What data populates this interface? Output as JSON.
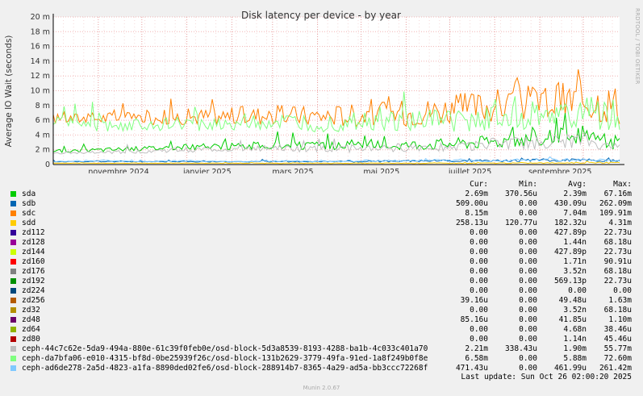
{
  "footer": "Munin 2.0.67",
  "side_label": "RRDTOOL / TOBI OETIKER",
  "last_update": "Last update: Sun Oct 26 02:00:20 2025",
  "columns": [
    "Cur:",
    "Min:",
    "Avg:",
    "Max:"
  ],
  "legend": [
    {
      "label": "sda",
      "color": "#00cc00",
      "cur": "2.69m",
      "min": "370.56u",
      "avg": "2.39m",
      "max": "67.16m"
    },
    {
      "label": "sdb",
      "color": "#0066b3",
      "cur": "509.00u",
      "min": "0.00",
      "avg": "430.09u",
      "max": "262.09m"
    },
    {
      "label": "sdc",
      "color": "#ff8000",
      "cur": "8.15m",
      "min": "0.00",
      "avg": "7.04m",
      "max": "109.91m"
    },
    {
      "label": "sdd",
      "color": "#ffcc00",
      "cur": "258.13u",
      "min": "120.77u",
      "avg": "182.32u",
      "max": "4.31m"
    },
    {
      "label": "zd112",
      "color": "#330099",
      "cur": "0.00",
      "min": "0.00",
      "avg": "427.89p",
      "max": "22.73u"
    },
    {
      "label": "zd128",
      "color": "#990099",
      "cur": "0.00",
      "min": "0.00",
      "avg": "1.44n",
      "max": "68.18u"
    },
    {
      "label": "zd144",
      "color": "#ccff00",
      "cur": "0.00",
      "min": "0.00",
      "avg": "427.89p",
      "max": "22.73u"
    },
    {
      "label": "zd160",
      "color": "#ff0000",
      "cur": "0.00",
      "min": "0.00",
      "avg": "1.71n",
      "max": "90.91u"
    },
    {
      "label": "zd176",
      "color": "#808080",
      "cur": "0.00",
      "min": "0.00",
      "avg": "3.52n",
      "max": "68.18u"
    },
    {
      "label": "zd192",
      "color": "#008f00",
      "cur": "0.00",
      "min": "0.00",
      "avg": "569.13p",
      "max": "22.73u"
    },
    {
      "label": "zd224",
      "color": "#00487d",
      "cur": "0.00",
      "min": "0.00",
      "avg": "0.00",
      "max": "0.00"
    },
    {
      "label": "zd256",
      "color": "#b35a00",
      "cur": "39.16u",
      "min": "0.00",
      "avg": "49.48u",
      "max": "1.63m"
    },
    {
      "label": "zd32",
      "color": "#b38f00",
      "cur": "0.00",
      "min": "0.00",
      "avg": "3.52n",
      "max": "68.18u"
    },
    {
      "label": "zd48",
      "color": "#6b006b",
      "cur": "85.16u",
      "min": "0.00",
      "avg": "41.85u",
      "max": "1.10m"
    },
    {
      "label": "zd64",
      "color": "#8fb300",
      "cur": "0.00",
      "min": "0.00",
      "avg": "4.68n",
      "max": "38.46u"
    },
    {
      "label": "zd80",
      "color": "#b30000",
      "cur": "0.00",
      "min": "0.00",
      "avg": "1.14n",
      "max": "45.46u"
    },
    {
      "label": "ceph-44c7c62e-5da9-494a-880e-61c39f0feb0e/osd-block-5d3a8539-8193-4288-ba1b-4c033c401a70",
      "color": "#bebebe",
      "cur": "2.21m",
      "min": "338.43u",
      "avg": "1.90m",
      "max": "55.77m"
    },
    {
      "label": "ceph-da7bfa06-e010-4315-bf8d-0be25939f26c/osd-block-131b2629-3779-49fa-91ed-1a8f249b0f8e",
      "color": "#80ff80",
      "cur": "6.58m",
      "min": "0.00",
      "avg": "5.88m",
      "max": "72.60m"
    },
    {
      "label": "ceph-ad6de278-2a5d-4823-a1fa-8890ded02fe6/osd-block-288914b7-8365-4a29-ad5a-bb3ccc72268f",
      "color": "#80c9ff",
      "cur": "471.43u",
      "min": "0.00",
      "avg": "461.99u",
      "max": "261.42m"
    }
  ],
  "chart_data": {
    "type": "line",
    "title": "Disk latency per device - by year",
    "ylabel": "Average IO Wait (seconds)",
    "xlabel": "",
    "ylim": [
      0,
      0.02
    ],
    "yticks": [
      "0",
      "2 m",
      "4 m",
      "6 m",
      "8 m",
      "10 m",
      "12 m",
      "14 m",
      "16 m",
      "18 m",
      "20 m"
    ],
    "xticks": [
      "novembre 2024",
      "janvier 2025",
      "mars 2025",
      "mai 2025",
      "juillet 2025",
      "septembre 2025"
    ],
    "x": [
      "2024-10-01",
      "2024-11-01",
      "2024-12-01",
      "2025-01-01",
      "2025-02-01",
      "2025-03-01",
      "2025-04-01",
      "2025-05-01",
      "2025-06-01",
      "2025-07-01",
      "2025-08-01",
      "2025-09-01",
      "2025-10-01",
      "2025-10-26"
    ],
    "series": [
      {
        "name": "sdc",
        "color": "#ff8000",
        "values": [
          0.0062,
          0.0063,
          0.0064,
          0.0065,
          0.0066,
          0.0067,
          0.0066,
          0.0068,
          0.007,
          0.0075,
          0.008,
          0.0085,
          0.0088,
          0.0082
        ]
      },
      {
        "name": "ceph-da7bfa06-e010-4315-bf8d-0be25939f26c/osd-block-131b2629-3779-49fa-91ed-1a8f249b0f8e",
        "color": "#80ff80",
        "values": [
          0.006,
          0.0052,
          0.0054,
          0.0055,
          0.0056,
          0.0057,
          0.0056,
          0.0058,
          0.0059,
          0.006,
          0.0063,
          0.0066,
          0.007,
          0.0066
        ]
      },
      {
        "name": "sda",
        "color": "#00cc00",
        "values": [
          0.0018,
          0.002,
          0.0022,
          0.0024,
          0.0025,
          0.0026,
          0.0025,
          0.0026,
          0.0027,
          0.0029,
          0.0032,
          0.0036,
          0.004,
          0.0027
        ]
      },
      {
        "name": "ceph-44c7c62e-5da9-494a-880e-61c39f0feb0e/osd-block-5d3a8539-8193-4288-ba1b-4c033c401a70",
        "color": "#bebebe",
        "values": [
          0.0015,
          0.0016,
          0.0018,
          0.002,
          0.0021,
          0.0022,
          0.0021,
          0.0022,
          0.0023,
          0.0025,
          0.0027,
          0.003,
          0.0032,
          0.0022
        ]
      },
      {
        "name": "sdb",
        "color": "#0066b3",
        "values": [
          0.0004,
          0.0004,
          0.0004,
          0.0004,
          0.0004,
          0.0004,
          0.0004,
          0.0004,
          0.0005,
          0.0005,
          0.0005,
          0.0006,
          0.0006,
          0.0005
        ]
      },
      {
        "name": "ceph-ad6de278-2a5d-4823-a1fa-8890ded02fe6/osd-block-288914b7-8365-4a29-ad5a-bb3ccc72268f",
        "color": "#80c9ff",
        "values": [
          0.0004,
          0.0005,
          0.0004,
          0.0005,
          0.0004,
          0.0005,
          0.0004,
          0.0005,
          0.0005,
          0.0006,
          0.0005,
          0.0006,
          0.0006,
          0.0005
        ]
      },
      {
        "name": "sdd",
        "color": "#ffcc00",
        "values": [
          0.00018,
          0.00018,
          0.00018,
          0.00018,
          0.00018,
          0.00018,
          0.00018,
          0.00018,
          0.00018,
          0.00018,
          0.00019,
          0.0002,
          0.00025,
          0.00026
        ]
      }
    ],
    "grid": true,
    "legend_position": "bottom"
  }
}
